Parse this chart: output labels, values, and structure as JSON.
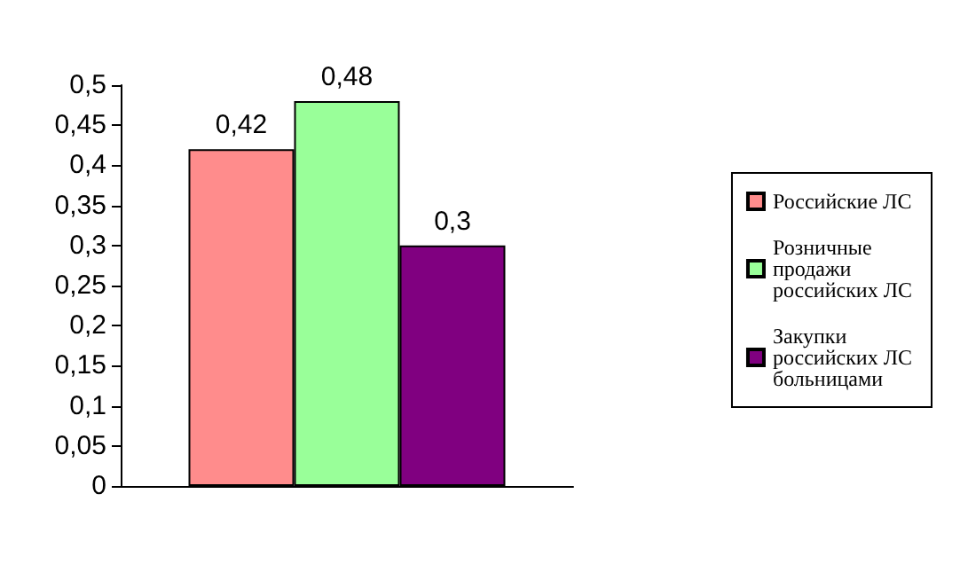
{
  "chart_data": {
    "type": "bar",
    "categories": [
      null
    ],
    "series": [
      {
        "name": "Российские ЛС",
        "color": "#ff8c8c",
        "values": [
          0.42
        ],
        "value_labels": [
          "0,42"
        ]
      },
      {
        "name": "Розничные продажи российских ЛС",
        "color": "#99ff99",
        "values": [
          0.48
        ],
        "value_labels": [
          "0,48"
        ]
      },
      {
        "name": "Закупки российских ЛС больницами",
        "color": "#800080",
        "values": [
          0.3
        ],
        "value_labels": [
          "0,3"
        ]
      }
    ],
    "ylim": [
      0,
      0.5
    ],
    "yticks": [
      0,
      {
        "value": 0.05,
        "label": "0,05"
      },
      {
        "value": 0.1,
        "label": "0,1"
      },
      {
        "value": 0.15,
        "label": "0,15"
      },
      {
        "value": 0.2,
        "label": "0,2"
      },
      {
        "value": 0.25,
        "label": "0,25"
      },
      {
        "value": 0.3,
        "label": "0,3"
      },
      {
        "value": 0.35,
        "label": "0,35"
      },
      {
        "value": 0.4,
        "label": "0,4"
      },
      {
        "value": 0.45,
        "label": "0,45"
      },
      {
        "value": 0.5,
        "label": "0,5"
      }
    ],
    "grid": false,
    "legend": "right"
  }
}
